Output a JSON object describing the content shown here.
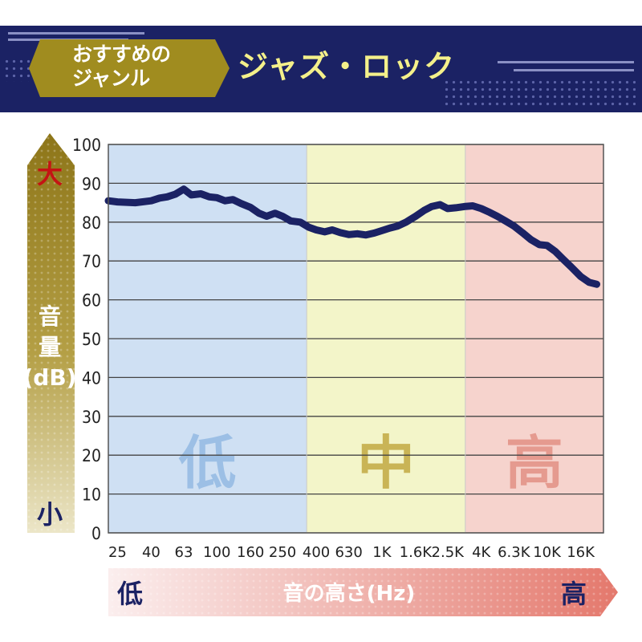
{
  "header": {
    "badge_label": "おすすめの\nジャンル",
    "genre": "ジャズ・ロック"
  },
  "chart_data": {
    "type": "line",
    "title": "",
    "ylabel": "音量(dB)",
    "y_axis_high_label": "大",
    "y_axis_low_label": "小",
    "xlabel": "音の高さ(Hz)",
    "x_axis_low_label": "低",
    "x_axis_high_label": "高",
    "ylim": [
      0,
      100
    ],
    "yticks": [
      0,
      10,
      20,
      30,
      40,
      50,
      60,
      70,
      80,
      90,
      100
    ],
    "x_scale": "log",
    "xlim_hz": [
      22,
      22000
    ],
    "xtick_labels": [
      "25",
      "40",
      "63",
      "100",
      "160",
      "250",
      "400",
      "630",
      "1K",
      "1.6K",
      "2.5K",
      "4K",
      "6.3K",
      "10K",
      "16K"
    ],
    "xtick_values_hz": [
      25,
      40,
      63,
      100,
      160,
      250,
      400,
      630,
      1000,
      1600,
      2500,
      4000,
      6300,
      10000,
      16000
    ],
    "grid": true,
    "bands": [
      {
        "label": "低",
        "from_hz": 22,
        "to_hz": 350,
        "color": "#cfe0f3",
        "label_color": "#9cbfe5"
      },
      {
        "label": "中",
        "from_hz": 350,
        "to_hz": 3200,
        "color": "#f3f5c9",
        "label_color": "#c9b456"
      },
      {
        "label": "高",
        "from_hz": 3200,
        "to_hz": 22000,
        "color": "#f6d3cd",
        "label_color": "#e59a8f"
      }
    ],
    "series": [
      {
        "color": "#1b2264",
        "x": [
          22,
          25,
          32,
          40,
          45,
          50,
          56,
          63,
          70,
          80,
          90,
          100,
          112,
          125,
          140,
          160,
          180,
          200,
          225,
          250,
          280,
          320,
          360,
          400,
          450,
          500,
          560,
          630,
          710,
          800,
          900,
          1000,
          1120,
          1250,
          1400,
          1600,
          1800,
          2000,
          2250,
          2500,
          2800,
          3150,
          3550,
          4000,
          4500,
          5000,
          5600,
          6300,
          7100,
          8000,
          9000,
          10000,
          11200,
          12500,
          14000,
          16000,
          18000,
          20000
        ],
        "values": [
          85.5,
          85.2,
          85.0,
          85.5,
          86.2,
          86.5,
          87.2,
          88.5,
          87.0,
          87.3,
          86.5,
          86.3,
          85.5,
          85.8,
          84.8,
          83.8,
          82.3,
          81.5,
          82.3,
          81.5,
          80.3,
          80.0,
          78.7,
          78.0,
          77.5,
          78.0,
          77.3,
          76.8,
          77.0,
          76.7,
          77.2,
          77.8,
          78.5,
          79.0,
          80.0,
          81.5,
          83.0,
          84.0,
          84.5,
          83.5,
          83.7,
          84.0,
          84.2,
          83.5,
          82.5,
          81.5,
          80.3,
          79.0,
          77.3,
          75.5,
          74.2,
          74.0,
          72.5,
          70.5,
          68.5,
          66.0,
          64.5,
          64.0
        ]
      }
    ]
  }
}
